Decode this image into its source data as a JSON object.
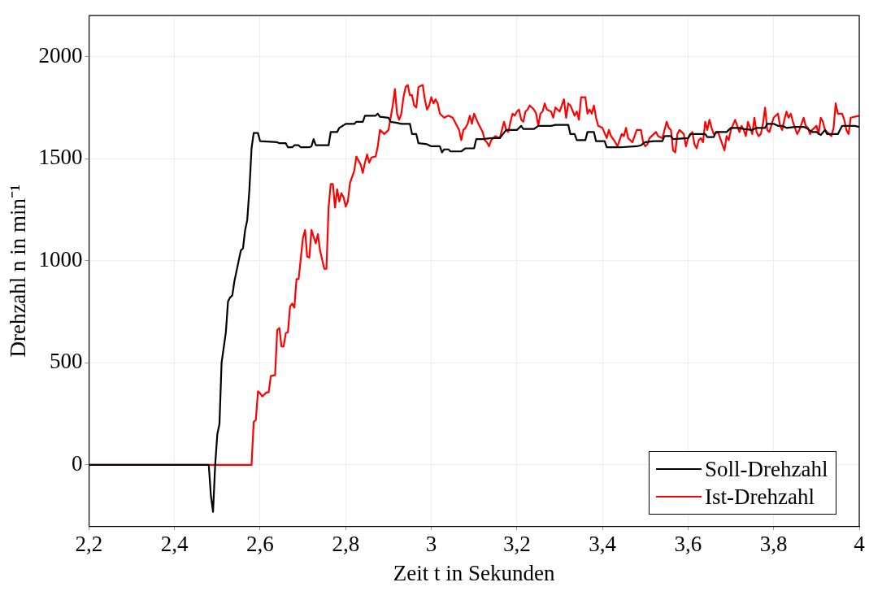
{
  "chart_data": {
    "type": "line",
    "xlabel": "Zeit t in Sekunden",
    "ylabel": "Drehzahl n in min⁻¹",
    "xlim": [
      2.2,
      4
    ],
    "xticks": [
      {
        "value": 2.2,
        "label": "2,2"
      },
      {
        "value": 2.4,
        "label": "2,4"
      },
      {
        "value": 2.6,
        "label": "2,6"
      },
      {
        "value": 2.8,
        "label": "2,8"
      },
      3,
      {
        "value": 3.2,
        "label": "3,2"
      },
      {
        "value": 3.4,
        "label": "3,4"
      },
      {
        "value": 3.6,
        "label": "3,6"
      },
      {
        "value": 3.8,
        "label": "3,8"
      },
      4
    ],
    "ylim": [
      -300,
      2200
    ],
    "yticks": [
      0,
      500,
      1000,
      1500,
      2000
    ],
    "grid": true,
    "legend": "bottom right",
    "series": [
      {
        "name": "Soll-Drehzahl",
        "color": "#000000",
        "x": [
          2.2,
          2.48,
          2.485,
          2.49,
          2.495,
          2.5,
          2.505,
          2.51,
          2.52,
          2.525,
          2.53,
          2.535,
          2.54,
          2.55,
          2.555,
          2.56,
          2.565,
          2.57,
          2.575,
          2.58,
          2.585,
          2.595,
          2.6,
          2.64,
          2.645,
          2.66,
          2.665,
          2.675,
          2.68,
          2.69,
          2.695,
          2.715,
          2.72,
          2.725,
          2.73,
          2.76,
          2.765,
          2.78,
          2.785,
          2.8,
          2.82,
          2.825,
          2.84,
          2.845,
          2.87,
          2.875,
          2.88,
          2.9,
          2.905,
          2.92,
          2.93,
          2.95,
          2.955,
          2.965,
          2.97,
          2.99,
          3.0,
          3.02,
          3.025,
          3.03,
          3.04,
          3.045,
          3.07,
          3.08,
          3.1,
          3.105,
          3.12,
          3.14,
          3.16,
          3.175,
          3.2,
          3.21,
          3.215,
          3.24,
          3.25,
          3.28,
          3.29,
          3.32,
          3.325,
          3.335,
          3.34,
          3.36,
          3.365,
          3.38,
          3.385,
          3.405,
          3.41,
          3.44,
          3.48,
          3.49,
          3.5,
          3.52,
          3.54,
          3.545,
          3.56,
          3.565,
          3.6,
          3.605,
          3.64,
          3.645,
          3.66,
          3.665,
          3.69,
          3.7,
          3.72,
          3.73,
          3.75,
          3.76,
          3.78,
          3.785,
          3.8,
          3.81,
          3.82,
          3.83,
          3.85,
          3.87,
          3.88,
          3.89,
          3.9,
          3.91,
          3.92,
          3.925,
          3.95,
          3.96,
          3.99,
          4.0
        ],
        "values": [
          0,
          0,
          -150,
          -230,
          0,
          150,
          200,
          500,
          650,
          800,
          820,
          830,
          900,
          1000,
          1050,
          1060,
          1150,
          1200,
          1350,
          1550,
          1625,
          1625,
          1585,
          1580,
          1575,
          1575,
          1555,
          1555,
          1565,
          1565,
          1555,
          1555,
          1560,
          1595,
          1565,
          1565,
          1630,
          1630,
          1650,
          1670,
          1670,
          1680,
          1680,
          1710,
          1710,
          1720,
          1705,
          1700,
          1680,
          1675,
          1670,
          1670,
          1620,
          1620,
          1575,
          1570,
          1560,
          1560,
          1530,
          1545,
          1545,
          1535,
          1535,
          1550,
          1550,
          1595,
          1595,
          1600,
          1600,
          1640,
          1640,
          1660,
          1645,
          1645,
          1660,
          1660,
          1665,
          1665,
          1620,
          1620,
          1590,
          1590,
          1630,
          1630,
          1585,
          1585,
          1555,
          1555,
          1560,
          1565,
          1580,
          1585,
          1585,
          1610,
          1610,
          1595,
          1600,
          1620,
          1620,
          1605,
          1605,
          1630,
          1630,
          1650,
          1650,
          1645,
          1640,
          1650,
          1650,
          1670,
          1670,
          1660,
          1660,
          1650,
          1655,
          1655,
          1645,
          1630,
          1630,
          1615,
          1640,
          1620,
          1620,
          1660,
          1660,
          1655
        ]
      },
      {
        "name": "Ist-Drehzahl",
        "color": "#ff0000",
        "x": [
          2.2,
          2.58,
          2.585,
          2.59,
          2.595,
          2.6,
          2.605,
          2.615,
          2.62,
          2.625,
          2.635,
          2.64,
          2.645,
          2.65,
          2.655,
          2.66,
          2.665,
          2.67,
          2.675,
          2.68,
          2.685,
          2.69,
          2.695,
          2.7,
          2.705,
          2.71,
          2.715,
          2.72,
          2.73,
          2.735,
          2.74,
          2.75,
          2.755,
          2.76,
          2.765,
          2.77,
          2.775,
          2.78,
          2.785,
          2.79,
          2.795,
          2.8,
          2.805,
          2.81,
          2.82,
          2.825,
          2.835,
          2.84,
          2.845,
          2.85,
          2.855,
          2.86,
          2.87,
          2.875,
          2.88,
          2.89,
          2.9,
          2.905,
          2.91,
          2.915,
          2.92,
          2.925,
          2.93,
          2.935,
          2.94,
          2.945,
          2.95,
          2.955,
          2.96,
          2.965,
          2.97,
          2.98,
          2.985,
          2.99,
          2.995,
          3.0,
          3.005,
          3.01,
          3.015,
          3.02,
          3.03,
          3.04,
          3.05,
          3.06,
          3.065,
          3.07,
          3.075,
          3.08,
          3.085,
          3.09,
          3.095,
          3.1,
          3.11,
          3.115,
          3.12,
          3.125,
          3.13,
          3.135,
          3.14,
          3.145,
          3.15,
          3.16,
          3.17,
          3.175,
          3.18,
          3.185,
          3.19,
          3.195,
          3.2,
          3.205,
          3.21,
          3.215,
          3.22,
          3.225,
          3.23,
          3.24,
          3.245,
          3.25,
          3.255,
          3.26,
          3.265,
          3.27,
          3.28,
          3.285,
          3.29,
          3.3,
          3.31,
          3.315,
          3.32,
          3.325,
          3.335,
          3.34,
          3.345,
          3.35,
          3.36,
          3.365,
          3.37,
          3.375,
          3.38,
          3.385,
          3.39,
          3.4,
          3.41,
          3.415,
          3.42,
          3.43,
          3.435,
          3.44,
          3.445,
          3.45,
          3.455,
          3.46,
          3.465,
          3.47,
          3.48,
          3.49,
          3.495,
          3.5,
          3.505,
          3.51,
          3.52,
          3.525,
          3.53,
          3.54,
          3.545,
          3.55,
          3.555,
          3.56,
          3.565,
          3.57,
          3.575,
          3.58,
          3.59,
          3.595,
          3.6,
          3.61,
          3.615,
          3.62,
          3.625,
          3.63,
          3.635,
          3.64,
          3.645,
          3.65,
          3.655,
          3.66,
          3.67,
          3.68,
          3.685,
          3.69,
          3.695,
          3.7,
          3.71,
          3.72,
          3.725,
          3.73,
          3.735,
          3.74,
          3.745,
          3.75,
          3.755,
          3.76,
          3.765,
          3.77,
          3.775,
          3.78,
          3.785,
          3.79,
          3.8,
          3.81,
          3.815,
          3.82,
          3.825,
          3.83,
          3.835,
          3.84,
          3.845,
          3.85,
          3.855,
          3.86,
          3.87,
          3.875,
          3.88,
          3.885,
          3.89,
          3.9,
          3.905,
          3.91,
          3.915,
          3.92,
          3.93,
          3.935,
          3.94,
          3.945,
          3.95,
          3.96,
          3.965,
          3.97,
          3.975,
          3.98,
          4.0
        ],
        "values": [
          0,
          0,
          210,
          220,
          360,
          350,
          335,
          355,
          355,
          435,
          440,
          660,
          670,
          580,
          580,
          645,
          650,
          775,
          790,
          770,
          910,
          910,
          1010,
          1110,
          1150,
          1020,
          1015,
          1150,
          1085,
          1130,
          1050,
          960,
          960,
          1260,
          1375,
          1375,
          1260,
          1350,
          1290,
          1330,
          1310,
          1265,
          1290,
          1380,
          1440,
          1510,
          1470,
          1430,
          1480,
          1520,
          1480,
          1505,
          1510,
          1560,
          1640,
          1620,
          1640,
          1700,
          1760,
          1840,
          1720,
          1690,
          1720,
          1800,
          1850,
          1860,
          1810,
          1810,
          1760,
          1750,
          1850,
          1860,
          1790,
          1740,
          1760,
          1800,
          1770,
          1790,
          1770,
          1720,
          1700,
          1710,
          1700,
          1660,
          1640,
          1590,
          1640,
          1650,
          1670,
          1710,
          1670,
          1720,
          1670,
          1650,
          1630,
          1590,
          1580,
          1560,
          1590,
          1600,
          1610,
          1600,
          1680,
          1640,
          1630,
          1680,
          1720,
          1710,
          1730,
          1740,
          1690,
          1680,
          1730,
          1740,
          1760,
          1740,
          1720,
          1660,
          1720,
          1730,
          1770,
          1740,
          1730,
          1700,
          1750,
          1730,
          1790,
          1700,
          1770,
          1760,
          1710,
          1730,
          1690,
          1800,
          1800,
          1720,
          1740,
          1720,
          1760,
          1700,
          1660,
          1650,
          1600,
          1640,
          1610,
          1580,
          1560,
          1590,
          1620,
          1610,
          1650,
          1600,
          1590,
          1580,
          1640,
          1640,
          1580,
          1560,
          1570,
          1600,
          1620,
          1630,
          1610,
          1600,
          1640,
          1680,
          1650,
          1640,
          1540,
          1530,
          1620,
          1640,
          1620,
          1560,
          1600,
          1630,
          1570,
          1550,
          1590,
          1600,
          1580,
          1680,
          1640,
          1690,
          1650,
          1620,
          1630,
          1570,
          1540,
          1610,
          1590,
          1640,
          1690,
          1630,
          1660,
          1640,
          1610,
          1680,
          1650,
          1620,
          1700,
          1630,
          1610,
          1620,
          1670,
          1750,
          1640,
          1630,
          1700,
          1720,
          1660,
          1640,
          1690,
          1730,
          1700,
          1720,
          1680,
          1650,
          1620,
          1640,
          1700,
          1660,
          1650,
          1620,
          1640,
          1660,
          1620,
          1700,
          1680,
          1640,
          1620,
          1610,
          1650,
          1770,
          1720,
          1720,
          1690,
          1640,
          1620,
          1700,
          1710
        ]
      }
    ]
  }
}
